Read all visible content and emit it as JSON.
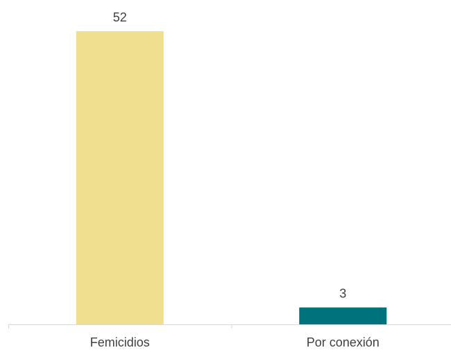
{
  "chart_data": {
    "type": "bar",
    "categories": [
      "Femicidios",
      "Por conexión"
    ],
    "values": [
      52,
      3
    ],
    "data_labels": [
      "52",
      "3"
    ],
    "colors": [
      "#F0DF8F",
      "#00727C"
    ],
    "ylim": [
      0,
      52
    ],
    "grid": false,
    "legend": "none",
    "axis_color": "#D9D9D9"
  }
}
